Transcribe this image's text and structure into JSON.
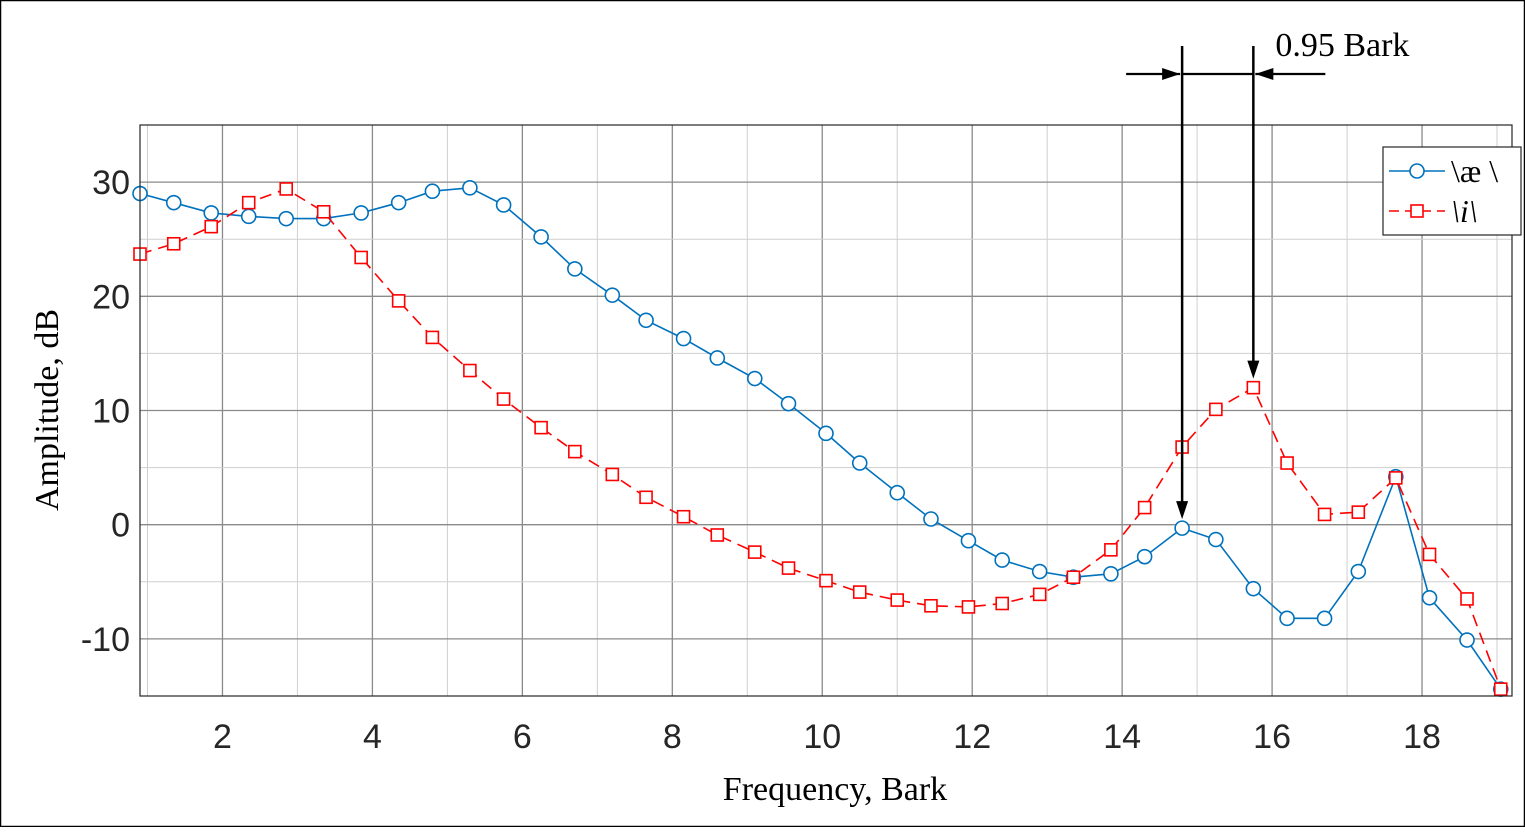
{
  "chart_data": {
    "type": "line",
    "xlabel": "Frequency, Bark",
    "ylabel": "Amplitude, dB",
    "xlim": [
      0.9,
      19.2
    ],
    "ylim": [
      -15,
      35
    ],
    "xticks": [
      2,
      4,
      6,
      8,
      10,
      12,
      14,
      16,
      18
    ],
    "yticks": [
      -10,
      0,
      10,
      20,
      30
    ],
    "xtick_labels": [
      "2",
      "4",
      "6",
      "8",
      "10",
      "12",
      "14",
      "16",
      "18"
    ],
    "ytick_labels": [
      "-10",
      "0",
      "10",
      "20",
      "30"
    ],
    "grid": true,
    "legend_position": "top-right",
    "colors": {
      "ae": "#0072BD",
      "i": "#FF0000"
    },
    "series": [
      {
        "name": "\\æ \\",
        "key": "ae",
        "marker": "circle",
        "linestyle": "solid",
        "x": [
          0.9,
          1.35,
          1.85,
          2.35,
          2.85,
          3.35,
          3.85,
          4.35,
          4.8,
          5.3,
          5.75,
          6.25,
          6.7,
          7.2,
          7.65,
          8.15,
          8.6,
          9.1,
          9.55,
          10.05,
          10.5,
          11.0,
          11.45,
          11.95,
          12.4,
          12.9,
          13.35,
          13.85,
          14.3,
          14.8,
          15.25,
          15.75,
          16.2,
          16.7,
          17.15,
          17.65,
          18.1,
          18.6,
          19.05
        ],
        "y": [
          29,
          28.2,
          27.3,
          27.0,
          26.8,
          26.8,
          27.3,
          28.2,
          29.2,
          29.5,
          28.0,
          25.2,
          22.4,
          20.1,
          17.9,
          16.3,
          14.6,
          12.8,
          10.6,
          8.0,
          5.4,
          2.8,
          0.5,
          -1.4,
          -3.1,
          -4.1,
          -4.6,
          -4.3,
          -2.8,
          -0.3,
          -1.3,
          -5.6,
          -8.2,
          -8.2,
          -4.1,
          4.2,
          -6.4,
          -10.1,
          -14.4
        ]
      },
      {
        "name": "\\i\\",
        "key": "i",
        "marker": "square",
        "linestyle": "dashed",
        "x": [
          0.9,
          1.35,
          1.85,
          2.35,
          2.85,
          3.35,
          3.85,
          4.35,
          4.8,
          5.3,
          5.75,
          6.25,
          6.7,
          7.2,
          7.65,
          8.15,
          8.6,
          9.1,
          9.55,
          10.05,
          10.5,
          11.0,
          11.45,
          11.95,
          12.4,
          12.9,
          13.35,
          13.85,
          14.3,
          14.8,
          15.25,
          15.75,
          16.2,
          16.7,
          17.15,
          17.65,
          18.1,
          18.6,
          19.05
        ],
        "y": [
          23.7,
          24.6,
          26.1,
          28.2,
          29.4,
          27.4,
          23.4,
          19.6,
          16.4,
          13.5,
          11.0,
          8.5,
          6.4,
          4.4,
          2.4,
          0.7,
          -0.9,
          -2.4,
          -3.8,
          -4.9,
          -5.9,
          -6.6,
          -7.1,
          -7.2,
          -6.9,
          -6.1,
          -4.6,
          -2.2,
          1.5,
          6.8,
          10.1,
          12.0,
          5.4,
          0.9,
          1.1,
          4.1,
          -2.6,
          -6.5,
          -14.4
        ]
      }
    ],
    "annotation": {
      "label": "0.95 Bark",
      "x1": 14.8,
      "x2": 15.75
    }
  }
}
